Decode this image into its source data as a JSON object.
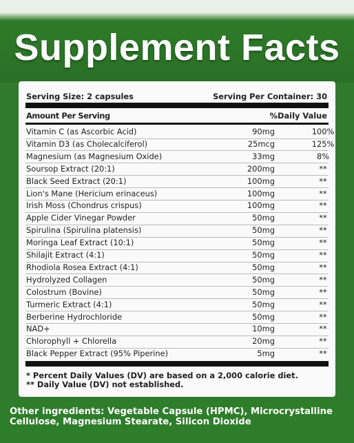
{
  "header": {
    "title": "Supplement Facts"
  },
  "serving": {
    "size": "Serving Size: 2 capsules",
    "per_container": "Serving Per Container: 30"
  },
  "table": {
    "columns": [
      "Amount Per Serving",
      "%Daily Value"
    ],
    "rows": [
      [
        "Vitamin C (as Ascorbic Acid)",
        "90mg",
        "100%"
      ],
      [
        "Vitamin D3 (as Cholecalciferol)",
        "25mcg",
        "125%"
      ],
      [
        "Magnesium (as Magnesium Oxide)",
        "33mg",
        "8%"
      ],
      [
        "Soursop Extract (20:1)",
        "200mg",
        "**"
      ],
      [
        "Black Seed Extract (20:1)",
        "100mg",
        "**"
      ],
      [
        "Lion's Mane (Hericium erinaceus)",
        "100mg",
        "**"
      ],
      [
        "Irish Moss (Chondrus crispus)",
        "100mg",
        "**"
      ],
      [
        "Apple Cider Vinegar Powder",
        "50mg",
        "**"
      ],
      [
        "Spirulina (Spirulina platensis)",
        "50mg",
        "**"
      ],
      [
        "Moringa Leaf Extract (10:1)",
        "50mg",
        "**"
      ],
      [
        "Shilajit Extract (4:1)",
        "50mg",
        "**"
      ],
      [
        "Rhodiola Rosea Extract (4:1)",
        "50mg",
        "**"
      ],
      [
        "Hydrolyzed Collagen",
        "50mg",
        "**"
      ],
      [
        "Colostrum (Bovine)",
        "50mg",
        "**"
      ],
      [
        "Turmeric Extract (4:1)",
        "50mg",
        "**"
      ],
      [
        "Berberine Hydrochloride",
        "50mg",
        "**"
      ],
      [
        "NAD+",
        "10mg",
        "**"
      ],
      [
        "Chlorophyll + Chlorella",
        "20mg",
        "**"
      ],
      [
        "Black Pepper Extract (95% Piperine)",
        "5mg",
        "**"
      ]
    ]
  },
  "footnotes": [
    "* Percent Daily Values (DV) are based on a 2,000 calorie diet.",
    "** Daily Value (DV) not established."
  ],
  "other_ingredients": "Other ingredients: Vegetable Capsule (HPMC), Microcrystalline Cellulose, Magnesium Stearate, Silicon Dioxide"
}
